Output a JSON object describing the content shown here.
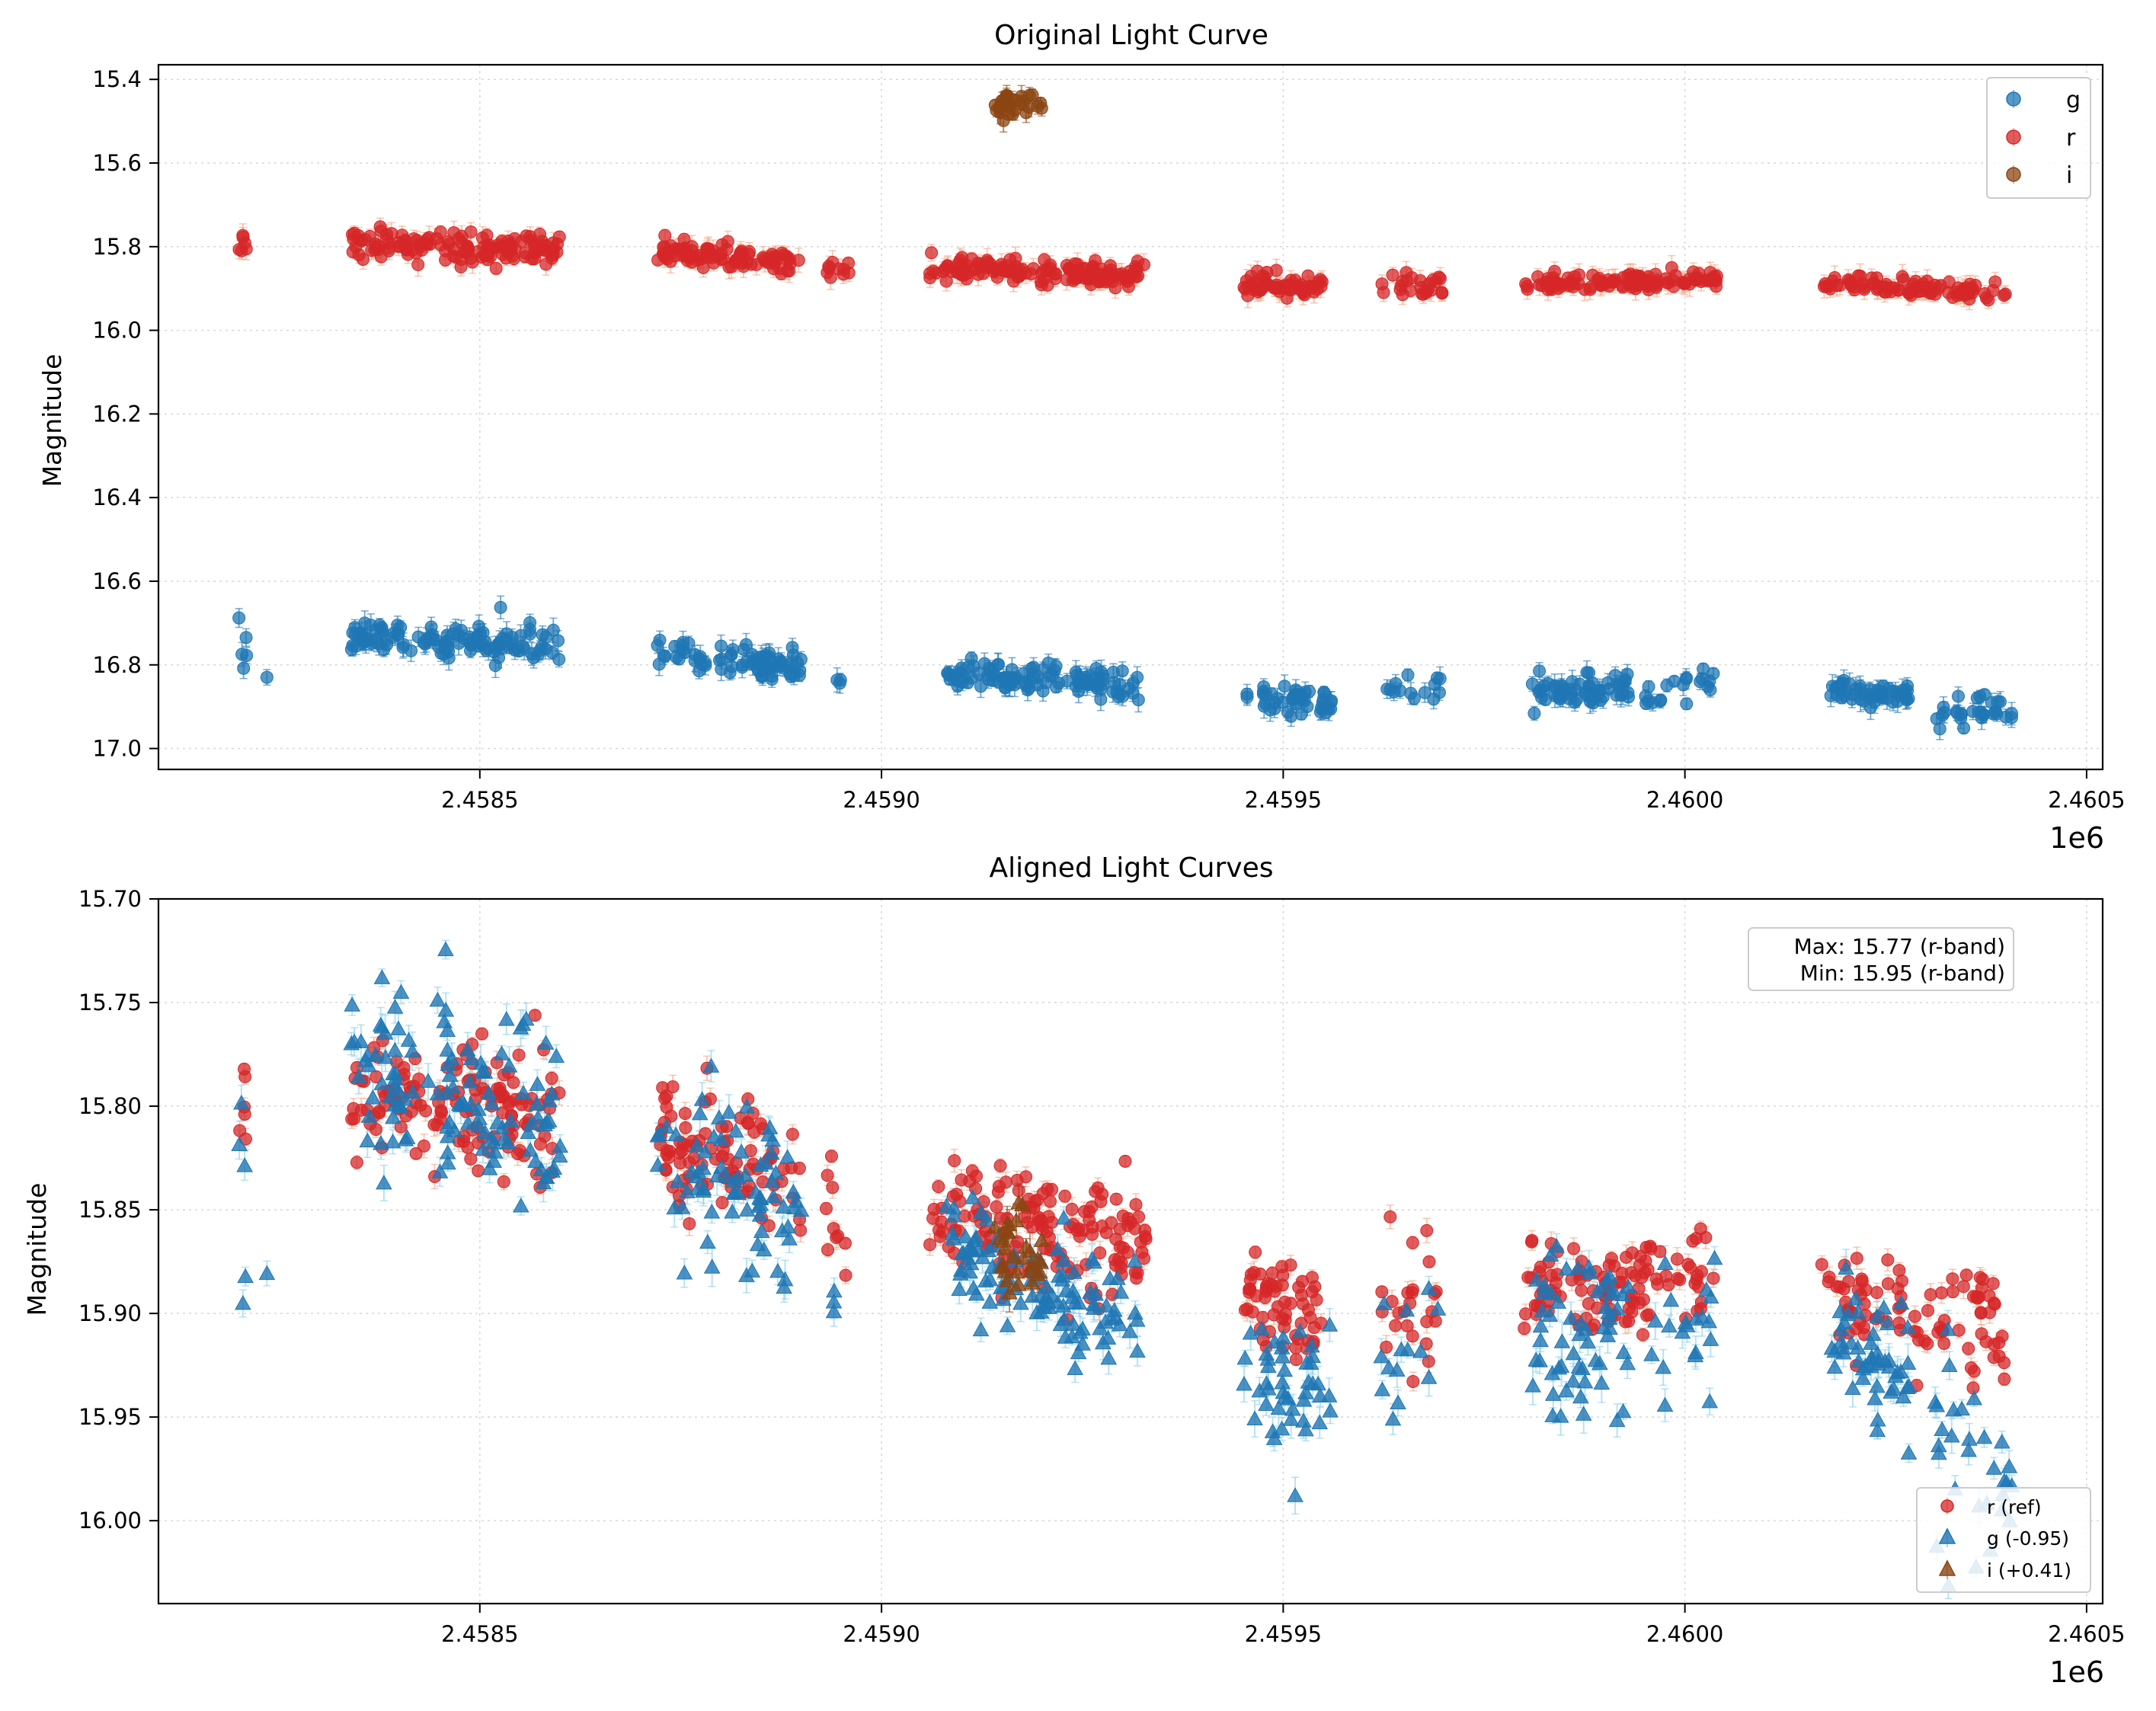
{
  "chart_data": [
    {
      "type": "scatter",
      "title": "Original Light Curve",
      "xlabel": "",
      "ylabel": "Magnitude",
      "x_offset_label": "1e6",
      "xlim": [
        2.4581,
        2.46052
      ],
      "ylim": [
        17.05,
        15.365
      ],
      "y_inverted": true,
      "grid": true,
      "xticks": [
        2.4585,
        2.459,
        2.4595,
        2.46,
        2.4605
      ],
      "xtick_labels": [
        "2.4585",
        "2.4590",
        "2.4595",
        "2.4600",
        "2.4605"
      ],
      "yticks": [
        15.4,
        15.6,
        15.8,
        16.0,
        16.2,
        16.4,
        16.6,
        16.8,
        17.0
      ],
      "ytick_labels": [
        "15.4",
        "15.6",
        "15.8",
        "16.0",
        "16.2",
        "16.4",
        "16.6",
        "16.8",
        "17.0"
      ],
      "legend": {
        "position": "top-right",
        "entries": [
          "g",
          "r",
          "i"
        ]
      },
      "series": [
        {
          "name": "g",
          "marker": "circle",
          "color": "#1f77b4",
          "errcolor": "#1f77b4",
          "clusters": [
            {
              "x0": 2.4582,
              "x1": 2.45821,
              "m0": 16.77,
              "m1": 16.8,
              "n": 5,
              "sd": 0.03
            },
            {
              "x0": 2.45823,
              "x1": 2.45824,
              "m0": 16.83,
              "m1": 16.83,
              "n": 1,
              "sd": 0.005
            },
            {
              "x0": 2.45834,
              "x1": 2.4586,
              "m0": 16.73,
              "m1": 16.76,
              "n": 120,
              "sd": 0.022
            },
            {
              "x0": 2.45872,
              "x1": 2.4589,
              "m0": 16.77,
              "m1": 16.81,
              "n": 75,
              "sd": 0.02
            },
            {
              "x0": 2.45894,
              "x1": 2.45895,
              "m0": 16.84,
              "m1": 16.84,
              "n": 3,
              "sd": 0.005
            },
            {
              "x0": 2.45908,
              "x1": 2.45932,
              "m0": 16.82,
              "m1": 16.85,
              "n": 110,
              "sd": 0.016
            },
            {
              "x0": 2.45945,
              "x1": 2.45956,
              "m0": 16.88,
              "m1": 16.89,
              "n": 45,
              "sd": 0.016
            },
            {
              "x0": 2.45962,
              "x1": 2.4597,
              "m0": 16.87,
              "m1": 16.84,
              "n": 14,
              "sd": 0.02
            },
            {
              "x0": 2.45981,
              "x1": 2.45993,
              "m0": 16.86,
              "m1": 16.86,
              "n": 60,
              "sd": 0.02
            },
            {
              "x0": 2.45995,
              "x1": 2.46004,
              "m0": 16.86,
              "m1": 16.85,
              "n": 20,
              "sd": 0.018
            },
            {
              "x0": 2.46018,
              "x1": 2.46028,
              "m0": 16.86,
              "m1": 16.88,
              "n": 50,
              "sd": 0.018
            },
            {
              "x0": 2.46031,
              "x1": 2.46041,
              "m0": 16.91,
              "m1": 16.92,
              "n": 30,
              "sd": 0.022
            }
          ]
        },
        {
          "name": "r",
          "marker": "circle",
          "color": "#d62728",
          "errcolor": "#f4a582",
          "clusters": [
            {
              "x0": 2.4582,
              "x1": 2.45821,
              "m0": 15.79,
              "m1": 15.81,
              "n": 6,
              "sd": 0.015
            },
            {
              "x0": 2.45834,
              "x1": 2.4586,
              "m0": 15.79,
              "m1": 15.81,
              "n": 140,
              "sd": 0.016
            },
            {
              "x0": 2.45872,
              "x1": 2.4589,
              "m0": 15.81,
              "m1": 15.84,
              "n": 95,
              "sd": 0.016
            },
            {
              "x0": 2.45893,
              "x1": 2.45896,
              "m0": 15.85,
              "m1": 15.86,
              "n": 10,
              "sd": 0.013
            },
            {
              "x0": 2.45906,
              "x1": 2.45933,
              "m0": 15.85,
              "m1": 15.87,
              "n": 150,
              "sd": 0.014
            },
            {
              "x0": 2.45945,
              "x1": 2.45955,
              "m0": 15.89,
              "m1": 15.9,
              "n": 60,
              "sd": 0.012
            },
            {
              "x0": 2.45962,
              "x1": 2.4597,
              "m0": 15.9,
              "m1": 15.89,
              "n": 25,
              "sd": 0.015
            },
            {
              "x0": 2.4598,
              "x1": 2.46004,
              "m0": 15.89,
              "m1": 15.88,
              "n": 110,
              "sd": 0.012
            },
            {
              "x0": 2.46017,
              "x1": 2.4604,
              "m0": 15.89,
              "m1": 15.91,
              "n": 90,
              "sd": 0.012
            }
          ]
        },
        {
          "name": "i",
          "marker": "circle",
          "color": "#8b4513",
          "errcolor": "#8b4513",
          "clusters": [
            {
              "x0": 2.45914,
              "x1": 2.4592,
              "m0": 15.46,
              "m1": 15.46,
              "n": 30,
              "sd": 0.012
            }
          ]
        }
      ]
    },
    {
      "type": "scatter",
      "title": "Aligned Light Curves",
      "xlabel": "",
      "ylabel": "Magnitude",
      "x_offset_label": "1e6",
      "xlim": [
        2.4581,
        2.46052
      ],
      "ylim": [
        16.04,
        15.7
      ],
      "y_inverted": true,
      "grid": true,
      "xticks": [
        2.4585,
        2.459,
        2.4595,
        2.46,
        2.4605
      ],
      "xtick_labels": [
        "2.4585",
        "2.4590",
        "2.4595",
        "2.4600",
        "2.4605"
      ],
      "yticks": [
        15.7,
        15.75,
        15.8,
        15.85,
        15.9,
        15.95,
        16.0
      ],
      "ytick_labels": [
        "15.70",
        "15.75",
        "15.80",
        "15.85",
        "15.90",
        "15.95",
        "16.00"
      ],
      "annotation": [
        "Max: 15.77 (r-band)",
        "Min: 15.95 (r-band)"
      ],
      "legend": {
        "position": "lower-right",
        "entries": [
          "r (ref)",
          "g (-0.95)",
          "i (+0.41)"
        ]
      },
      "series": [
        {
          "name": "r (ref)",
          "marker": "circle",
          "color": "#d62728",
          "errcolor": "#f4a582",
          "offset": 0,
          "clusters": [
            {
              "x0": 2.4582,
              "x1": 2.45821,
              "m0": 15.8,
              "m1": 15.81,
              "n": 6,
              "sd": 0.012
            },
            {
              "x0": 2.45834,
              "x1": 2.4586,
              "m0": 15.79,
              "m1": 15.81,
              "n": 140,
              "sd": 0.016
            },
            {
              "x0": 2.45872,
              "x1": 2.4589,
              "m0": 15.81,
              "m1": 15.84,
              "n": 95,
              "sd": 0.016
            },
            {
              "x0": 2.45893,
              "x1": 2.45896,
              "m0": 15.85,
              "m1": 15.86,
              "n": 10,
              "sd": 0.013
            },
            {
              "x0": 2.45906,
              "x1": 2.45933,
              "m0": 15.85,
              "m1": 15.87,
              "n": 150,
              "sd": 0.014
            },
            {
              "x0": 2.45945,
              "x1": 2.45955,
              "m0": 15.89,
              "m1": 15.9,
              "n": 60,
              "sd": 0.012
            },
            {
              "x0": 2.45962,
              "x1": 2.4597,
              "m0": 15.9,
              "m1": 15.89,
              "n": 25,
              "sd": 0.015
            },
            {
              "x0": 2.4598,
              "x1": 2.46004,
              "m0": 15.89,
              "m1": 15.88,
              "n": 110,
              "sd": 0.012
            },
            {
              "x0": 2.46017,
              "x1": 2.4604,
              "m0": 15.89,
              "m1": 15.91,
              "n": 90,
              "sd": 0.012
            }
          ]
        },
        {
          "name": "g (-0.95)",
          "marker": "triangle",
          "color": "#1f77b4",
          "errcolor": "#87ceeb",
          "offset": -0.95,
          "clusters": [
            {
              "x0": 2.4582,
              "x1": 2.45821,
              "m0": 15.82,
              "m1": 15.85,
              "n": 5,
              "sd": 0.03
            },
            {
              "x0": 2.45823,
              "x1": 2.45824,
              "m0": 15.88,
              "m1": 15.88,
              "n": 1,
              "sd": 0.005
            },
            {
              "x0": 2.45834,
              "x1": 2.4586,
              "m0": 15.78,
              "m1": 15.81,
              "n": 120,
              "sd": 0.022
            },
            {
              "x0": 2.45872,
              "x1": 2.4589,
              "m0": 15.82,
              "m1": 15.86,
              "n": 75,
              "sd": 0.02
            },
            {
              "x0": 2.45894,
              "x1": 2.45895,
              "m0": 15.89,
              "m1": 15.89,
              "n": 3,
              "sd": 0.005
            },
            {
              "x0": 2.45908,
              "x1": 2.45932,
              "m0": 15.87,
              "m1": 15.9,
              "n": 110,
              "sd": 0.016
            },
            {
              "x0": 2.45945,
              "x1": 2.45956,
              "m0": 15.93,
              "m1": 15.94,
              "n": 45,
              "sd": 0.016
            },
            {
              "x0": 2.45962,
              "x1": 2.4597,
              "m0": 15.92,
              "m1": 15.89,
              "n": 14,
              "sd": 0.02
            },
            {
              "x0": 2.45981,
              "x1": 2.45993,
              "m0": 15.91,
              "m1": 15.91,
              "n": 60,
              "sd": 0.02
            },
            {
              "x0": 2.45995,
              "x1": 2.46004,
              "m0": 15.91,
              "m1": 15.9,
              "n": 20,
              "sd": 0.018
            },
            {
              "x0": 2.46018,
              "x1": 2.46028,
              "m0": 15.91,
              "m1": 15.93,
              "n": 50,
              "sd": 0.018
            },
            {
              "x0": 2.46031,
              "x1": 2.46041,
              "m0": 15.96,
              "m1": 15.97,
              "n": 30,
              "sd": 0.022
            }
          ]
        },
        {
          "name": "i (+0.41)",
          "marker": "triangle",
          "color": "#8b4513",
          "errcolor": "#8b4513",
          "offset": 0.41,
          "clusters": [
            {
              "x0": 2.45914,
              "x1": 2.4592,
              "m0": 15.87,
              "m1": 15.87,
              "n": 30,
              "sd": 0.012
            }
          ]
        }
      ]
    }
  ]
}
